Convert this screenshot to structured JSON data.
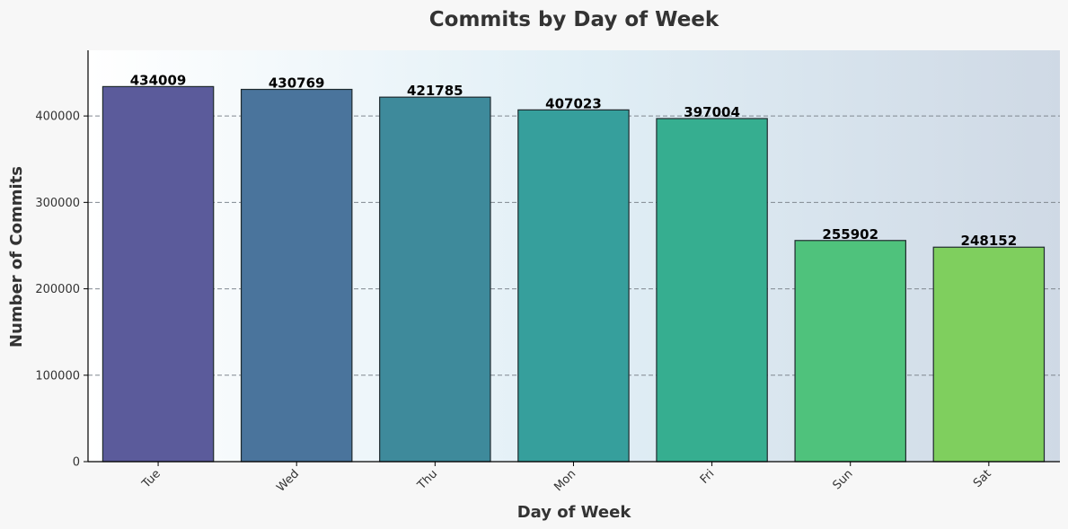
{
  "chart_data": {
    "type": "bar",
    "title": "Commits by Day of Week",
    "xlabel": "Day of Week",
    "ylabel": "Number of Commits",
    "categories": [
      "Tue",
      "Wed",
      "Thu",
      "Mon",
      "Fri",
      "Sun",
      "Sat"
    ],
    "values": [
      434009,
      430769,
      421785,
      407023,
      397004,
      255902,
      248152
    ],
    "data_labels": [
      "434009",
      "430769",
      "421785",
      "407023",
      "397004",
      "255902",
      "248152"
    ],
    "ylim": [
      0,
      476000
    ],
    "yticks": [
      0,
      100000,
      200000,
      300000,
      400000
    ],
    "ytick_labels": [
      "0",
      "100000",
      "200000",
      "300000",
      "400000"
    ],
    "grid": "y-dashed",
    "colors": [
      "#5b5b9b",
      "#4a749c",
      "#3e8a9b",
      "#369f9c",
      "#36ae90",
      "#4fc27c",
      "#7fcf5e"
    ],
    "plot_background_gradient": [
      "#ffffff",
      "#cfd9e5"
    ]
  }
}
